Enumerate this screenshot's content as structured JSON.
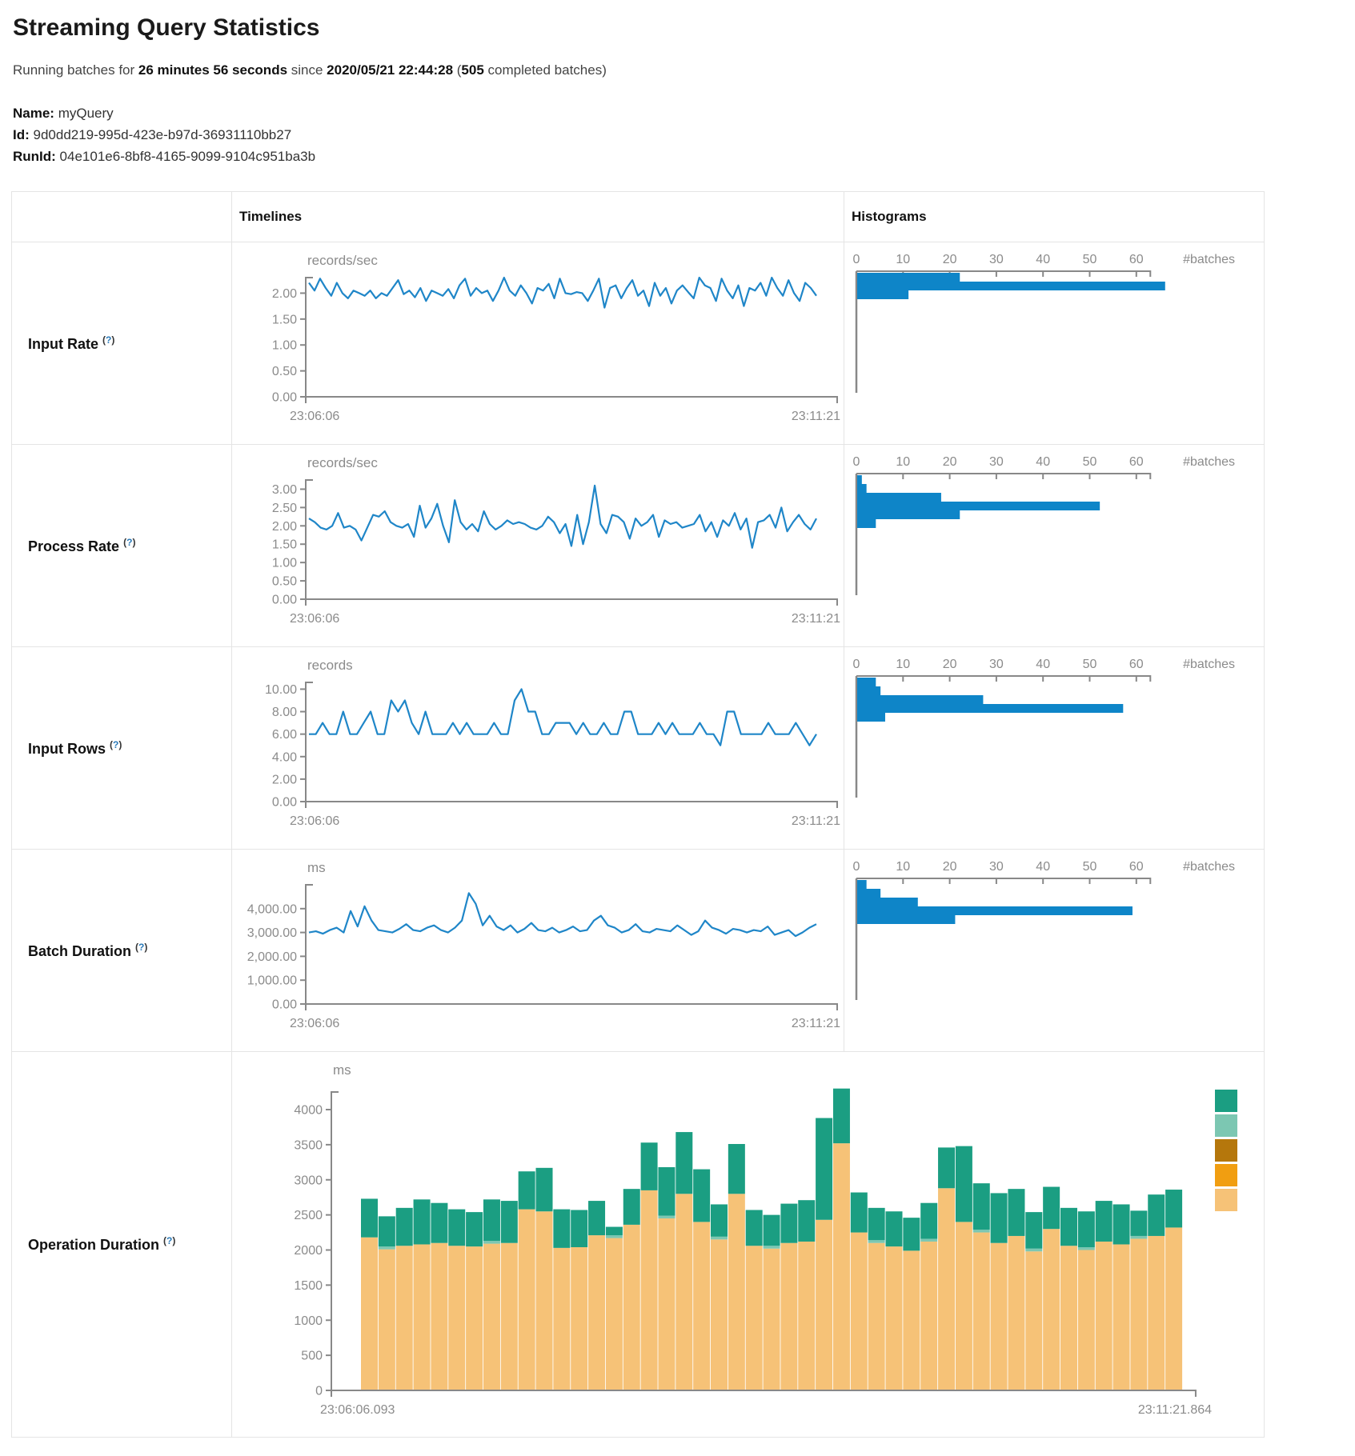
{
  "page": {
    "title": "Streaming Query Statistics"
  },
  "status": {
    "prefix": "Running batches for ",
    "duration": "26 minutes 56 seconds",
    "middle": " since ",
    "start_time": "2020/05/21 22:44:28",
    "paren_open": " (",
    "completed_count": "505",
    "suffix": " completed batches)"
  },
  "meta": {
    "name_label": "Name:",
    "name": " myQuery",
    "id_label": "Id:",
    "id": " 9d0dd219-995d-423e-b97d-36931110bb27",
    "runid_label": "RunId:",
    "runid": " 04e101e6-8bf8-4165-9099-9104c951ba3b"
  },
  "table": {
    "header_timelines": "Timelines",
    "header_histograms": "Histograms"
  },
  "help_marker": {
    "open": "(",
    "q": "?",
    "close": ")"
  },
  "rows": [
    {
      "label": "Input Rate"
    },
    {
      "label": "Process Rate"
    },
    {
      "label": "Input Rows"
    },
    {
      "label": "Batch Duration"
    },
    {
      "label": "Operation Duration"
    }
  ],
  "colors": {
    "line_blue": "#1f86c8",
    "hist_blue": "#0e85c8",
    "axis_gray": "#888888",
    "stack_teal": "#1b9e82",
    "stack_light_teal": "#7cc7b2",
    "stack_dark_orange": "#b5770c",
    "stack_orange": "#f19e11",
    "stack_tan": "#f6c277"
  },
  "chart_data": [
    {
      "id": "input_rate_timeline",
      "type": "line",
      "unit": "records/sec",
      "x_start_label": "23:06:06",
      "x_end_label": "23:11:21",
      "y_ticks": [
        0,
        0.5,
        1,
        1.5,
        2
      ],
      "y_tick_labels": [
        "0.00",
        "0.50",
        "1.00",
        "1.50",
        "2.00"
      ],
      "y_max": 2.3,
      "grid": false,
      "values": [
        2.2,
        2.05,
        2.28,
        2.1,
        1.95,
        2.2,
        2.0,
        1.9,
        2.05,
        2.0,
        1.95,
        2.05,
        1.9,
        2.0,
        1.95,
        2.1,
        2.25,
        1.98,
        2.05,
        1.92,
        2.1,
        1.85,
        2.05,
        2.0,
        1.95,
        2.08,
        1.9,
        2.15,
        2.28,
        1.95,
        2.1,
        2.0,
        2.05,
        1.85,
        2.05,
        2.3,
        2.05,
        1.95,
        2.15,
        2.0,
        1.8,
        2.1,
        2.05,
        2.18,
        1.9,
        2.28,
        2.0,
        1.98,
        2.02,
        2.0,
        1.85,
        2.05,
        2.28,
        1.72,
        2.1,
        2.15,
        1.9,
        2.1,
        2.25,
        1.95,
        2.05,
        1.75,
        2.2,
        1.95,
        2.1,
        1.8,
        2.05,
        2.15,
        2.02,
        1.9,
        2.3,
        2.15,
        2.1,
        1.85,
        2.28,
        2.05,
        1.9,
        2.15,
        1.75,
        2.1,
        2.05,
        2.2,
        1.95,
        2.3,
        2.1,
        1.95,
        2.25,
        2.0,
        1.85,
        2.2,
        2.1,
        1.95
      ]
    },
    {
      "id": "input_rate_histogram",
      "type": "bar-h",
      "x_ticks": [
        0,
        10,
        20,
        30,
        40,
        50,
        60
      ],
      "x_axis_label": "#batches",
      "values": [
        22,
        66,
        11
      ]
    },
    {
      "id": "process_rate_timeline",
      "type": "line",
      "unit": "records/sec",
      "x_start_label": "23:06:06",
      "x_end_label": "23:11:21",
      "y_ticks": [
        0,
        0.5,
        1,
        1.5,
        2,
        2.5,
        3
      ],
      "y_tick_labels": [
        "0.00",
        "0.50",
        "1.00",
        "1.50",
        "2.00",
        "2.50",
        "3.00"
      ],
      "y_max": 3.25,
      "grid": false,
      "values": [
        2.2,
        2.1,
        1.95,
        1.9,
        2.0,
        2.35,
        1.95,
        2.0,
        1.9,
        1.6,
        1.95,
        2.3,
        2.25,
        2.4,
        2.1,
        2.0,
        1.95,
        2.05,
        1.7,
        2.55,
        1.95,
        2.2,
        2.6,
        2.0,
        1.55,
        2.7,
        2.1,
        1.9,
        2.05,
        1.85,
        2.4,
        2.05,
        1.9,
        2.0,
        2.15,
        2.05,
        2.1,
        2.05,
        1.95,
        1.9,
        2.0,
        2.25,
        2.1,
        1.8,
        2.05,
        1.45,
        2.3,
        1.5,
        2.1,
        3.1,
        2.05,
        1.8,
        2.3,
        2.25,
        2.1,
        1.65,
        2.2,
        2.0,
        2.1,
        2.3,
        1.7,
        2.15,
        2.05,
        2.1,
        1.95,
        2.0,
        2.05,
        2.3,
        1.85,
        2.1,
        1.7,
        2.15,
        2.0,
        2.35,
        1.9,
        2.2,
        1.4,
        2.1,
        2.15,
        2.3,
        1.95,
        2.5,
        1.85,
        2.1,
        2.3,
        2.05,
        1.9,
        2.2
      ]
    },
    {
      "id": "process_rate_histogram",
      "type": "bar-h",
      "x_ticks": [
        0,
        10,
        20,
        30,
        40,
        50,
        60
      ],
      "x_axis_label": "#batches",
      "values": [
        1,
        2,
        18,
        52,
        22,
        4
      ]
    },
    {
      "id": "input_rows_timeline",
      "type": "line",
      "unit": "records",
      "x_start_label": "23:06:06",
      "x_end_label": "23:11:21",
      "y_ticks": [
        0,
        2,
        4,
        6,
        8,
        10
      ],
      "y_tick_labels": [
        "0.00",
        "2.00",
        "4.00",
        "6.00",
        "8.00",
        "10.00"
      ],
      "y_max": 10.6,
      "grid": false,
      "values": [
        6,
        6,
        7,
        6,
        6,
        8,
        6,
        6,
        7,
        8,
        6,
        6,
        9,
        8,
        9,
        7,
        6,
        8,
        6,
        6,
        6,
        7,
        6,
        7,
        6,
        6,
        6,
        7,
        6,
        6,
        9,
        10,
        8,
        8,
        6,
        6,
        7,
        7,
        7,
        6,
        7,
        6,
        6,
        7,
        6,
        6,
        8,
        8,
        6,
        6,
        6,
        7,
        6,
        7,
        6,
        6,
        6,
        7,
        6,
        6,
        5,
        8,
        8,
        6,
        6,
        6,
        6,
        7,
        6,
        6,
        6,
        7,
        6,
        5,
        6
      ]
    },
    {
      "id": "input_rows_histogram",
      "type": "bar-h",
      "x_ticks": [
        0,
        10,
        20,
        30,
        40,
        50,
        60
      ],
      "x_axis_label": "#batches",
      "values": [
        4,
        5,
        27,
        57,
        6
      ]
    },
    {
      "id": "batch_duration_timeline",
      "type": "line",
      "unit": "ms",
      "x_start_label": "23:06:06",
      "x_end_label": "23:11:21",
      "y_ticks": [
        0,
        1000,
        2000,
        3000,
        4000
      ],
      "y_tick_labels": [
        "0.00",
        "1,000.00",
        "2,000.00",
        "3,000.00",
        "4,000.00"
      ],
      "y_max": 5000,
      "grid": false,
      "values": [
        3000,
        3050,
        2950,
        3100,
        3200,
        3000,
        3900,
        3250,
        4100,
        3500,
        3100,
        3050,
        3000,
        3150,
        3350,
        3100,
        3050,
        3200,
        3300,
        3100,
        3000,
        3200,
        3500,
        4650,
        4200,
        3300,
        3700,
        3250,
        3100,
        3300,
        3000,
        3150,
        3400,
        3100,
        3050,
        3200,
        3000,
        3100,
        3250,
        3050,
        3100,
        3500,
        3700,
        3300,
        3200,
        3000,
        3100,
        3350,
        3050,
        3000,
        3150,
        3100,
        3050,
        3300,
        3100,
        2900,
        3050,
        3500,
        3200,
        3100,
        2950,
        3150,
        3100,
        3000,
        3100,
        3050,
        3250,
        2900,
        3000,
        3100,
        2850,
        3000,
        3200,
        3350
      ]
    },
    {
      "id": "batch_duration_histogram",
      "type": "bar-h",
      "x_ticks": [
        0,
        10,
        20,
        30,
        40,
        50,
        60
      ],
      "x_axis_label": "#batches",
      "values": [
        2,
        5,
        13,
        59,
        21
      ]
    },
    {
      "id": "operation_duration",
      "type": "stacked-bar",
      "unit": "ms",
      "x_start_label": "23:06:06.093",
      "x_end_label": "23:11:21.864",
      "y_ticks": [
        0,
        500,
        1000,
        1500,
        2000,
        2500,
        3000,
        3500,
        4000
      ],
      "y_tick_labels": [
        "0",
        "500",
        "1000",
        "1500",
        "2000",
        "2500",
        "3000",
        "3500",
        "4000"
      ],
      "y_max": 4500,
      "grid": false,
      "legend_position": "right",
      "legend_colors": [
        "#1b9e82",
        "#7cc7b2",
        "#b5770c",
        "#f19e11",
        "#f6c277"
      ],
      "series": [
        {
          "name": "bottom-tan",
          "color": "#f6c277",
          "values": [
            2180,
            2010,
            2060,
            2080,
            2100,
            2060,
            2050,
            2090,
            2100,
            2580,
            2550,
            2030,
            2040,
            2210,
            2170,
            2360,
            2850,
            2450,
            2800,
            2400,
            2150,
            2800,
            2060,
            2020,
            2100,
            2120,
            2430,
            3520,
            2250,
            2100,
            2050,
            1990,
            2120,
            2880,
            2400,
            2250,
            2100,
            2200,
            1980,
            2300,
            2060,
            2000,
            2120,
            2080,
            2160,
            2200,
            2320
          ]
        },
        {
          "name": "middle-light-teal",
          "color": "#7cc7b2",
          "values": [
            0,
            40,
            0,
            0,
            0,
            0,
            0,
            40,
            0,
            0,
            0,
            0,
            0,
            0,
            40,
            0,
            0,
            40,
            0,
            0,
            40,
            0,
            0,
            40,
            0,
            0,
            0,
            0,
            0,
            40,
            0,
            0,
            40,
            0,
            0,
            40,
            0,
            0,
            40,
            0,
            0,
            40,
            0,
            0,
            40,
            0,
            0
          ]
        },
        {
          "name": "top-teal",
          "color": "#1b9e82",
          "values": [
            550,
            430,
            540,
            640,
            570,
            520,
            490,
            590,
            600,
            540,
            620,
            550,
            530,
            490,
            120,
            510,
            680,
            690,
            880,
            750,
            460,
            710,
            510,
            440,
            560,
            590,
            1450,
            780,
            570,
            460,
            500,
            470,
            510,
            580,
            1080,
            660,
            710,
            670,
            520,
            600,
            540,
            510,
            580,
            570,
            360,
            590,
            540
          ]
        }
      ]
    }
  ]
}
